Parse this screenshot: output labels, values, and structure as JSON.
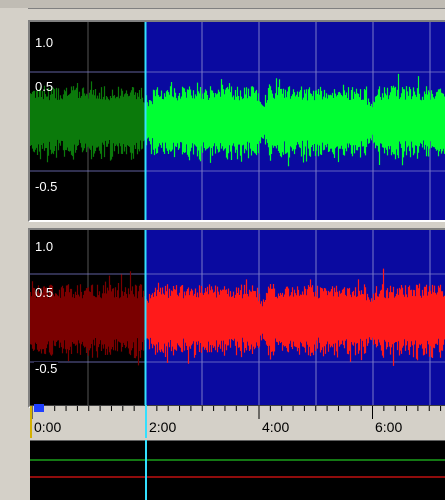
{
  "channel_top": {
    "labels": [
      "1.0",
      "0.5",
      "-0.5"
    ],
    "colors": {
      "background": "#0a0aa0",
      "grid": "#7a7ac8",
      "wave": "#00ff33",
      "wave_dim": "#0b7a0b"
    }
  },
  "channel_bottom": {
    "labels": [
      "1.0",
      "0.5",
      "-0.5"
    ],
    "colors": {
      "background": "#0a0aa0",
      "grid": "#7a7ac8",
      "wave": "#ff1a1a",
      "wave_dim": "#7a0000"
    }
  },
  "timeline": {
    "labels": [
      "0:00",
      "2:00",
      "4:00",
      "6:00"
    ]
  },
  "colors": {
    "cursor": "#33e0ff",
    "green_track": "#00ff33",
    "red_track": "#ff1a1a",
    "marker": "#1f3fff"
  }
}
